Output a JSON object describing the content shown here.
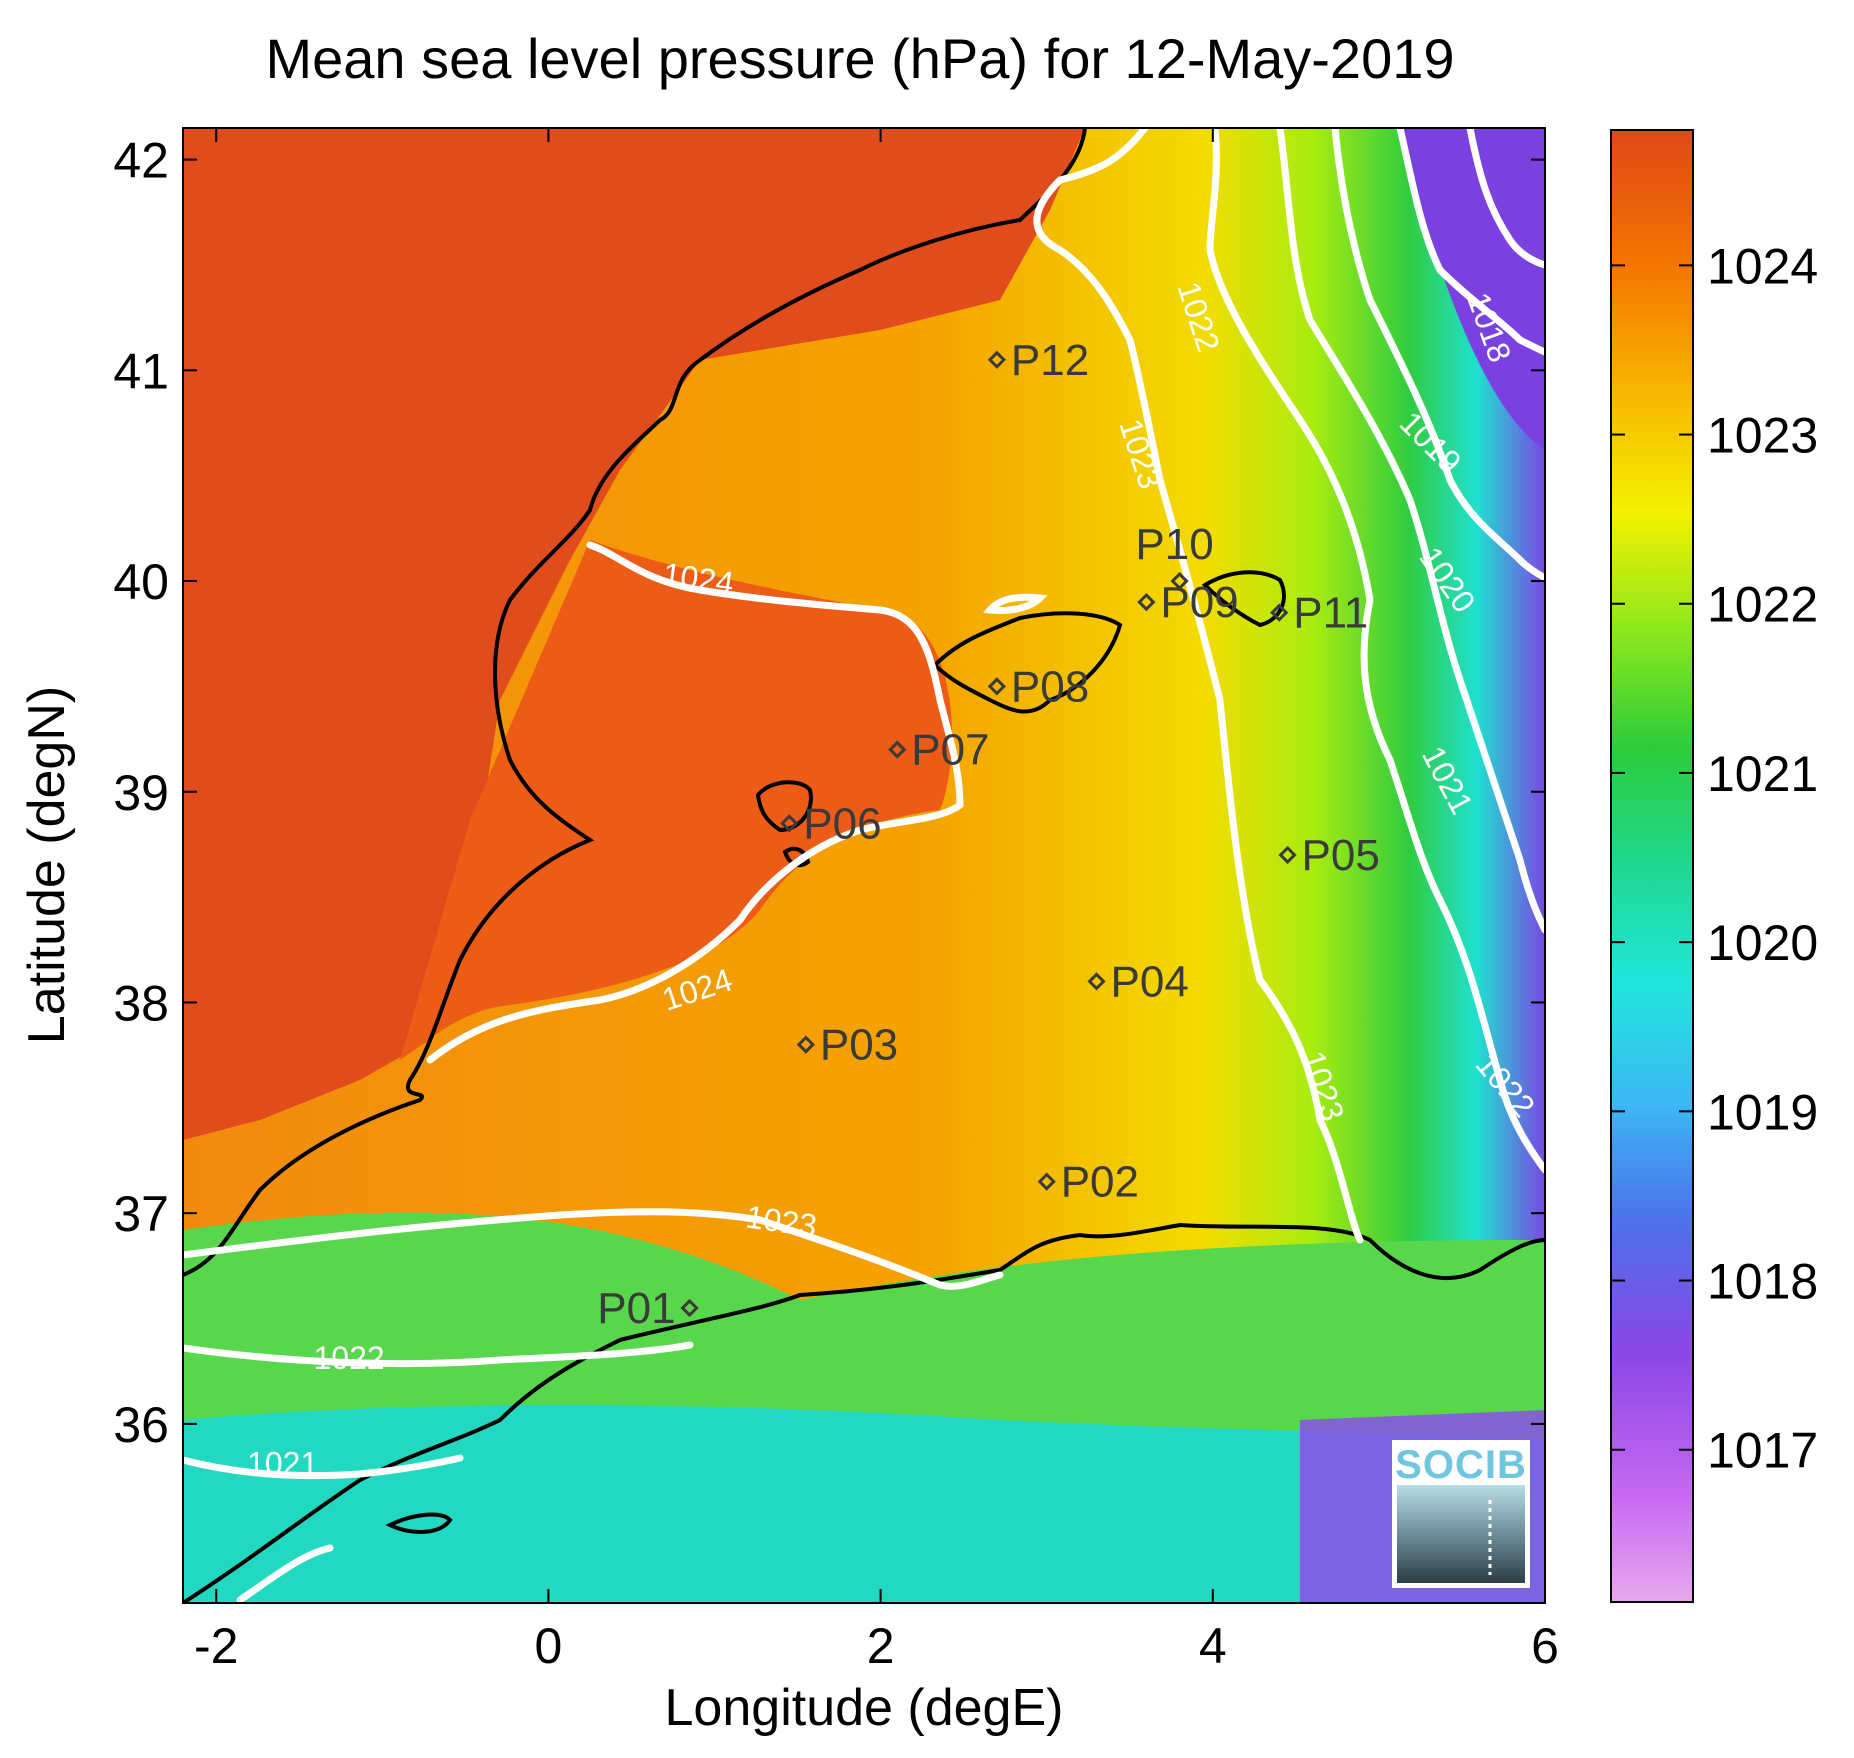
{
  "title": "Mean sea level pressure (hPa) for 12-May-2019",
  "chart_data": {
    "type": "heatmap",
    "title": "Mean sea level pressure (hPa) for 12-May-2019",
    "xlabel": "Longitude (degE)",
    "ylabel": "Latitude (degN)",
    "xlim": [
      -2.2,
      6.0
    ],
    "ylim": [
      35.15,
      42.15
    ],
    "x_ticks": [
      -2,
      0,
      2,
      4,
      6
    ],
    "y_ticks": [
      36,
      37,
      38,
      39,
      40,
      41,
      42
    ],
    "x_tick_labels": [
      "-2",
      "0",
      "2",
      "4",
      "6"
    ],
    "y_tick_labels": [
      "36",
      "37",
      "38",
      "39",
      "40",
      "41",
      "42"
    ],
    "colorbar": {
      "range": [
        1016.1,
        1024.8
      ],
      "ticks": [
        1017,
        1018,
        1019,
        1020,
        1021,
        1022,
        1023,
        1024
      ],
      "tick_labels": [
        "1017",
        "1018",
        "1019",
        "1020",
        "1021",
        "1022",
        "1023",
        "1024"
      ],
      "colors": [
        "#e6a0e8",
        "#c05ff0",
        "#7040e0",
        "#3c9cf0",
        "#20e8e6",
        "#20d080",
        "#30cc30",
        "#b8f000",
        "#f8f000",
        "#f8b000",
        "#f87000",
        "#e04818"
      ]
    },
    "stations": [
      {
        "label": "P01",
        "lon": 0.85,
        "lat": 36.55
      },
      {
        "label": "P02",
        "lon": 3.0,
        "lat": 37.15
      },
      {
        "label": "P03",
        "lon": 1.55,
        "lat": 37.8
      },
      {
        "label": "P04",
        "lon": 3.3,
        "lat": 38.1
      },
      {
        "label": "P05",
        "lon": 4.45,
        "lat": 38.7
      },
      {
        "label": "P06",
        "lon": 1.45,
        "lat": 38.85
      },
      {
        "label": "P07",
        "lon": 2.1,
        "lat": 39.2
      },
      {
        "label": "P08",
        "lon": 2.7,
        "lat": 39.5
      },
      {
        "label": "P09",
        "lon": 3.6,
        "lat": 39.9
      },
      {
        "label": "P10",
        "lon": 3.8,
        "lat": 40.0
      },
      {
        "label": "P11",
        "lon": 4.4,
        "lat": 39.85
      },
      {
        "label": "P12",
        "lon": 2.7,
        "lat": 41.05
      }
    ],
    "contour_labels": [
      {
        "text": "1024",
        "lon": 0.9,
        "lat": 40.0,
        "angle": 8
      },
      {
        "text": "1024",
        "lon": 0.9,
        "lat": 38.05,
        "angle": -18
      },
      {
        "text": "1023",
        "lon": 1.4,
        "lat": 36.95,
        "angle": 8
      },
      {
        "text": "1022",
        "lon": -1.2,
        "lat": 36.3,
        "angle": 0
      },
      {
        "text": "1021",
        "lon": -1.6,
        "lat": 35.8,
        "angle": 0
      },
      {
        "text": "1023",
        "lon": 3.55,
        "lat": 40.6,
        "angle": 72
      },
      {
        "text": "1022",
        "lon": 3.9,
        "lat": 41.25,
        "angle": 72
      },
      {
        "text": "1023",
        "lon": 4.65,
        "lat": 37.6,
        "angle": 72
      },
      {
        "text": "1022",
        "lon": 5.75,
        "lat": 37.6,
        "angle": 50
      },
      {
        "text": "1021",
        "lon": 5.4,
        "lat": 39.05,
        "angle": 62
      },
      {
        "text": "1020",
        "lon": 5.4,
        "lat": 40.0,
        "angle": 55
      },
      {
        "text": "1019",
        "lon": 5.3,
        "lat": 40.65,
        "angle": 45
      },
      {
        "text": "1018",
        "lon": 5.65,
        "lat": 41.2,
        "angle": 70
      }
    ]
  },
  "logo": {
    "text": "SOCIB"
  }
}
